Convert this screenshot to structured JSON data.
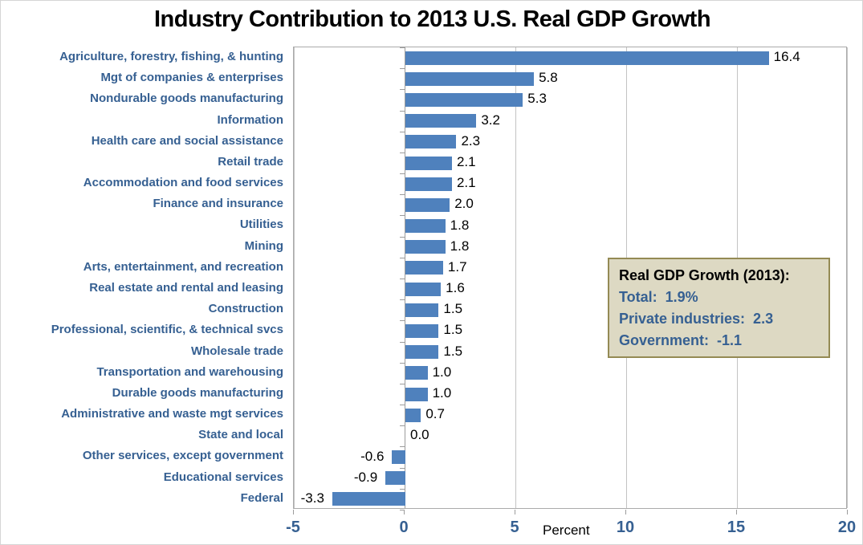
{
  "title": "Industry Contribution to 2013 U.S. Real GDP Growth",
  "chart_data": {
    "type": "bar",
    "orientation": "horizontal",
    "title": "Industry Contribution to 2013 U.S. Real GDP Growth",
    "categories": [
      "Agriculture, forestry, fishing, & hunting",
      "Mgt of companies & enterprises",
      "Nondurable goods manufacturing",
      "Information",
      "Health care and social assistance",
      "Retail trade",
      "Accommodation and food services",
      "Finance and insurance",
      "Utilities",
      "Mining",
      "Arts, entertainment, and recreation",
      "Real estate and rental and leasing",
      "Construction",
      "Professional, scientific, & technical svcs",
      "Wholesale trade",
      "Transportation and warehousing",
      "Durable goods manufacturing",
      "Administrative and waste mgt services",
      "State and local",
      "Other services, except government",
      "Educational services",
      "Federal"
    ],
    "values": [
      16.4,
      5.8,
      5.3,
      3.2,
      2.3,
      2.1,
      2.1,
      2.0,
      1.8,
      1.8,
      1.7,
      1.6,
      1.5,
      1.5,
      1.5,
      1.0,
      1.0,
      0.7,
      0.0,
      -0.6,
      -0.9,
      -3.3
    ],
    "xlabel": "Percent",
    "xlim": [
      -5,
      20
    ],
    "xticks": [
      -5,
      0,
      5,
      10,
      15,
      20
    ],
    "grid": "vertical",
    "legend": "none",
    "value_labels_shown": true
  },
  "annotation": {
    "title": "Real GDP Growth (2013):",
    "lines": [
      "Total:  1.9%",
      "Private industries:  2.3",
      "Government:  -1.1"
    ]
  },
  "colors": {
    "bar": "#4F81BD",
    "category_label": "#366092",
    "axis_tick_label": "#366092",
    "value_label": "#000000",
    "gridline": "#C3C3C3",
    "axis_line": "#9C9C9C",
    "plot_border": "#ABABAB",
    "annotation_fill": "#DDD9C3",
    "annotation_border": "#948A54",
    "annotation_text_blue": "#366092",
    "title": "#000000"
  }
}
